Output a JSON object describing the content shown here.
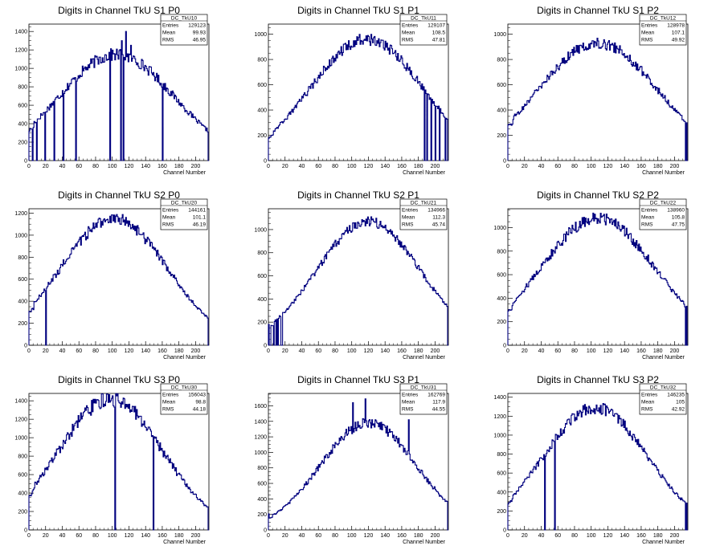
{
  "colors": {
    "histogram": "#00007f",
    "axis": "#000000",
    "background": "#ffffff"
  },
  "stats_labels": {
    "entries": "Entries",
    "mean": "Mean",
    "rms": "RMS"
  },
  "chart_data": [
    {
      "type": "histogram",
      "title": "Digits in Channel TkU S1 P0",
      "xlabel": "Channel Number",
      "ylabel": "",
      "xlim": [
        0,
        216
      ],
      "ylim": [
        0,
        1480
      ],
      "xticks": [
        0,
        20,
        40,
        60,
        80,
        100,
        120,
        140,
        160,
        180,
        200
      ],
      "yticks": [
        0,
        200,
        400,
        600,
        800,
        1000,
        1200,
        1400
      ],
      "stats": {
        "name": "DC_TkU10",
        "entries": "129123",
        "mean": "99.93",
        "rms": "46.95"
      },
      "shape": {
        "peak_x": 105,
        "peak_y": 1150,
        "sigma": 60,
        "noise": 0.06,
        "edge_low": 40,
        "edge_high": 100
      },
      "spikes": [
        [
          111,
          1300
        ],
        [
          116,
          1400
        ],
        [
          122,
          1250
        ]
      ],
      "drops": [
        4,
        9,
        19,
        30,
        41,
        56,
        97,
        110,
        113,
        160
      ]
    },
    {
      "type": "histogram",
      "title": "Digits in Channel TkU S1 P1",
      "xlabel": "Channel Number",
      "ylabel": "",
      "xlim": [
        0,
        216
      ],
      "ylim": [
        0,
        1080
      ],
      "xticks": [
        0,
        20,
        40,
        60,
        80,
        100,
        120,
        140,
        160,
        180,
        200
      ],
      "yticks": [
        0,
        200,
        400,
        600,
        800,
        1000
      ],
      "stats": {
        "name": "DC_TkU11",
        "entries": "129107",
        "mean": "108.5",
        "rms": "47.81"
      },
      "shape": {
        "peak_x": 118,
        "peak_y": 960,
        "sigma": 58,
        "noise": 0.05,
        "edge_low": 170,
        "edge_high": 200
      },
      "spikes": [],
      "drops": [
        187,
        190,
        195,
        200,
        205,
        212
      ]
    },
    {
      "type": "histogram",
      "title": "Digits in Channel TkU S1 P2",
      "xlabel": "Channel Number",
      "ylabel": "",
      "xlim": [
        0,
        216
      ],
      "ylim": [
        0,
        1080
      ],
      "xticks": [
        0,
        20,
        40,
        60,
        80,
        100,
        120,
        140,
        160,
        180,
        200
      ],
      "yticks": [
        0,
        200,
        400,
        600,
        800,
        1000
      ],
      "stats": {
        "name": "DC_TkU12",
        "entries": "128978",
        "mean": "107.1",
        "rms": "49.92"
      },
      "shape": {
        "peak_x": 108,
        "peak_y": 930,
        "sigma": 62,
        "noise": 0.05,
        "edge_low": 170,
        "edge_high": 200
      },
      "spikes": [],
      "drops": [
        213
      ]
    },
    {
      "type": "histogram",
      "title": "Digits in Channel TkU S2 P0",
      "xlabel": "Channel Number",
      "ylabel": "",
      "xlim": [
        0,
        216
      ],
      "ylim": [
        0,
        1240
      ],
      "xticks": [
        0,
        20,
        40,
        60,
        80,
        100,
        120,
        140,
        160,
        180,
        200
      ],
      "yticks": [
        0,
        200,
        400,
        600,
        800,
        1000,
        1200
      ],
      "stats": {
        "name": "DC_TkU20",
        "entries": "144161",
        "mean": "101.1",
        "rms": "46.19"
      },
      "shape": {
        "peak_x": 102,
        "peak_y": 1150,
        "sigma": 56,
        "noise": 0.05,
        "edge_low": 170,
        "edge_high": 200
      },
      "spikes": [],
      "drops": [
        20
      ]
    },
    {
      "type": "histogram",
      "title": "Digits in Channel TkU S2 P1",
      "xlabel": "Channel Number",
      "ylabel": "",
      "xlim": [
        0,
        216
      ],
      "ylim": [
        0,
        1180
      ],
      "xticks": [
        0,
        20,
        40,
        60,
        80,
        100,
        120,
        140,
        160,
        180,
        200
      ],
      "yticks": [
        0,
        200,
        400,
        600,
        800,
        1000
      ],
      "stats": {
        "name": "DC_TkU21",
        "entries": "134966",
        "mean": "112.3",
        "rms": "45.74"
      },
      "shape": {
        "peak_x": 120,
        "peak_y": 1070,
        "sigma": 54,
        "noise": 0.04,
        "edge_low": 170,
        "edge_high": 200
      },
      "spikes": [],
      "drops": [
        1,
        2,
        6,
        9,
        11,
        15,
        16
      ]
    },
    {
      "type": "histogram",
      "title": "Digits in Channel TkU S2 P2",
      "xlabel": "Channel Number",
      "ylabel": "",
      "xlim": [
        0,
        216
      ],
      "ylim": [
        0,
        1160
      ],
      "xticks": [
        0,
        20,
        40,
        60,
        80,
        100,
        120,
        140,
        160,
        180,
        200
      ],
      "yticks": [
        0,
        200,
        400,
        600,
        800,
        1000
      ],
      "stats": {
        "name": "DC_TkU22",
        "entries": "138960",
        "mean": "105.8",
        "rms": "47.75"
      },
      "shape": {
        "peak_x": 108,
        "peak_y": 1080,
        "sigma": 60,
        "noise": 0.05,
        "edge_low": 170,
        "edge_high": 200
      },
      "spikes": [],
      "drops": [
        213
      ]
    },
    {
      "type": "histogram",
      "title": "Digits in Channel TkU S3 P0",
      "xlabel": "Channel Number",
      "ylabel": "",
      "xlim": [
        0,
        216
      ],
      "ylim": [
        0,
        1480
      ],
      "xticks": [
        0,
        20,
        40,
        60,
        80,
        100,
        120,
        140,
        160,
        180,
        200
      ],
      "yticks": [
        0,
        200,
        400,
        600,
        800,
        1000,
        1200,
        1400
      ],
      "stats": {
        "name": "DC_TkU30",
        "entries": "156043",
        "mean": "98.8",
        "rms": "44.18"
      },
      "shape": {
        "peak_x": 98,
        "peak_y": 1420,
        "sigma": 54,
        "noise": 0.06,
        "edge_low": 170,
        "edge_high": 200
      },
      "spikes": [],
      "drops": [
        103,
        149
      ]
    },
    {
      "type": "histogram",
      "title": "Digits in Channel TkU S3 P1",
      "xlabel": "Channel Number",
      "ylabel": "",
      "xlim": [
        0,
        216
      ],
      "ylim": [
        0,
        1760
      ],
      "xticks": [
        0,
        20,
        40,
        60,
        80,
        100,
        120,
        140,
        160,
        180,
        200
      ],
      "yticks": [
        0,
        200,
        400,
        600,
        800,
        1000,
        1200,
        1400,
        1600
      ],
      "stats": {
        "name": "DC_TkU31",
        "entries": "162769",
        "mean": "117.9",
        "rms": "44.55"
      },
      "shape": {
        "peak_x": 120,
        "peak_y": 1380,
        "sigma": 50,
        "noise": 0.05,
        "edge_low": 170,
        "edge_high": 200
      },
      "spikes": [
        [
          101,
          1640
        ],
        [
          116,
          1690
        ],
        [
          168,
          1420
        ]
      ],
      "drops": []
    },
    {
      "type": "histogram",
      "title": "Digits in Channel TkU S3 P2",
      "xlabel": "Channel Number",
      "ylabel": "",
      "xlim": [
        0,
        216
      ],
      "ylim": [
        0,
        1440
      ],
      "xticks": [
        0,
        20,
        40,
        60,
        80,
        100,
        120,
        140,
        160,
        180,
        200
      ],
      "yticks": [
        0,
        200,
        400,
        600,
        800,
        1000,
        1200,
        1400
      ],
      "stats": {
        "name": "DC_TkU32",
        "entries": "146235",
        "mean": "105",
        "rms": "42.92"
      },
      "shape": {
        "peak_x": 105,
        "peak_y": 1290,
        "sigma": 54,
        "noise": 0.05,
        "edge_low": 170,
        "edge_high": 200
      },
      "spikes": [],
      "drops": [
        44,
        56,
        213
      ]
    }
  ]
}
